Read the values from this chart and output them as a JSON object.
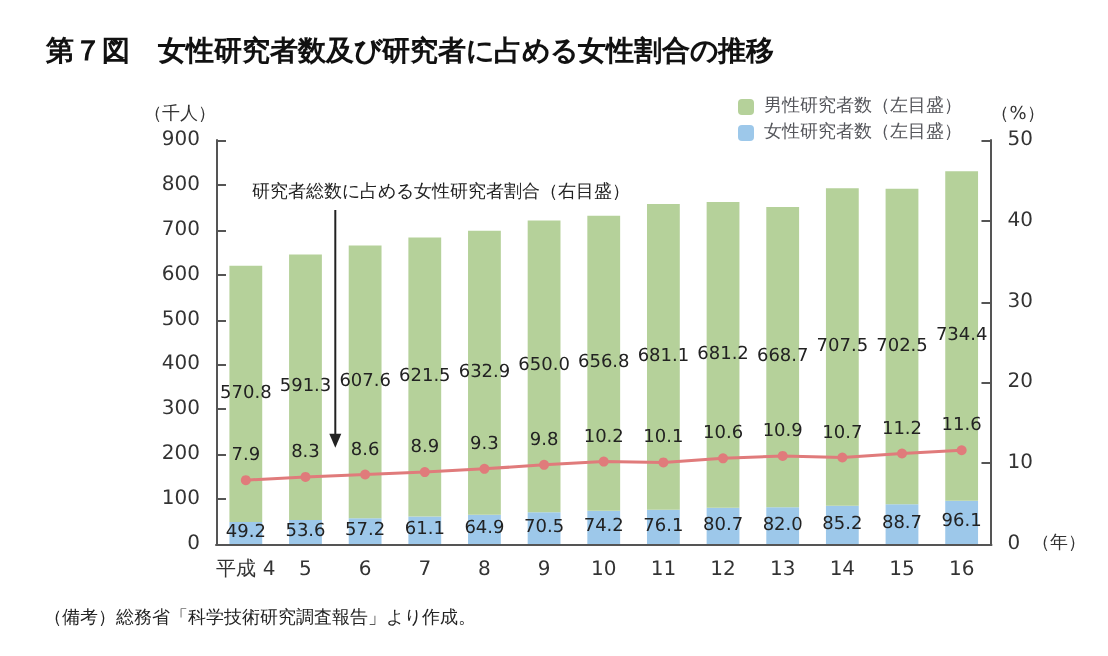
{
  "chart_data": {
    "type": "bar",
    "title": "第７図　女性研究者数及び研究者に占める女性割合の推移",
    "ylabel": "（千人）",
    "y2label": "（%）",
    "xlabel": "（年）",
    "annotations": [
      "研究者総数に占める女性研究者割合（右目盛）",
      "（備考）総務省「科学技術研究調査報告」より作成。"
    ],
    "categories": [
      "平成 4",
      "5",
      "6",
      "7",
      "8",
      "9",
      "10",
      "11",
      "12",
      "13",
      "14",
      "15",
      "16"
    ],
    "stacked": true,
    "series": [
      {
        "name": "女性研究者数（左目盛）",
        "color": "#9dc8ea",
        "values": [
          49.2,
          53.6,
          57.2,
          61.1,
          64.9,
          70.5,
          74.2,
          76.1,
          80.7,
          82.0,
          85.2,
          88.7,
          96.1
        ],
        "value_labels": [
          "49.2",
          "53.6",
          "57.2",
          "61.1",
          "64.9",
          "70.5",
          "74.2",
          "76.1",
          "80.7",
          "82.0",
          "85.2",
          "88.7",
          "96.1"
        ]
      },
      {
        "name": "男性研究者数（左目盛）",
        "color": "#b5d19a",
        "values": [
          570.8,
          591.3,
          607.6,
          621.5,
          632.9,
          650.0,
          656.8,
          681.1,
          681.2,
          668.7,
          707.5,
          702.5,
          734.4
        ],
        "value_labels": [
          "570.8",
          "591.3",
          "607.6",
          "621.5",
          "632.9",
          "650.0",
          "656.8",
          "681.1",
          "681.2",
          "668.7",
          "707.5",
          "702.5",
          "734.4"
        ]
      },
      {
        "type": "line",
        "axis": "y2",
        "color": "#e07b7b",
        "values": [
          7.9,
          8.3,
          8.6,
          8.9,
          9.3,
          9.8,
          10.2,
          10.1,
          10.6,
          10.9,
          10.7,
          11.2,
          11.6
        ],
        "value_labels": [
          "7.9",
          "8.3",
          "8.6",
          "8.9",
          "9.3",
          "9.8",
          "10.2",
          "10.1",
          "10.6",
          "10.9",
          "10.7",
          "11.2",
          "11.6"
        ]
      }
    ],
    "ylim": [
      0,
      900
    ],
    "yticks": [
      0,
      100,
      200,
      300,
      400,
      500,
      600,
      700,
      800,
      900
    ],
    "y2lim": [
      0,
      50
    ],
    "y2ticks": [
      0,
      10,
      20,
      30,
      40,
      50
    ],
    "legend": "top right",
    "grid": false,
    "marker": "circle",
    "line_style": "solid"
  }
}
